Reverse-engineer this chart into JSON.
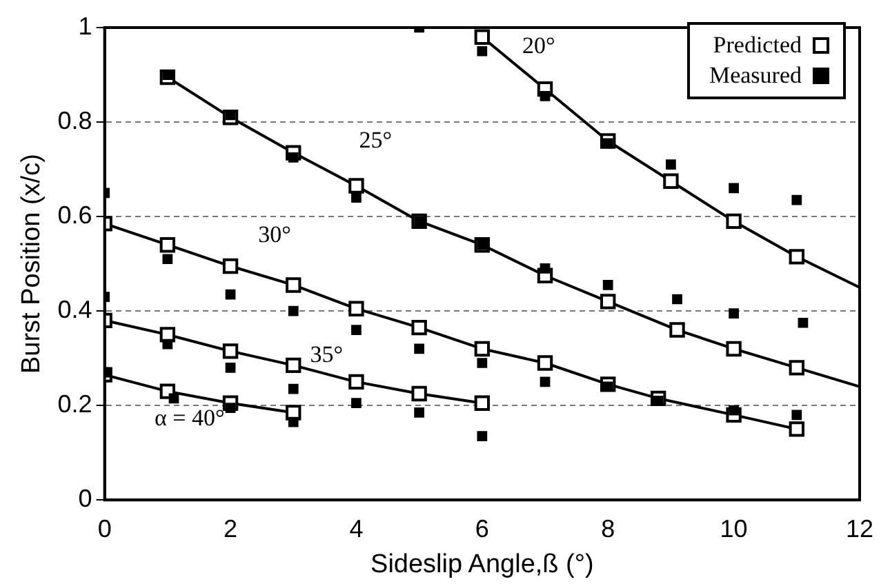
{
  "chart_data": {
    "type": "scatter",
    "xlabel": "Sideslip Angle,ß (°)",
    "ylabel": "Burst Position (x/c)",
    "xlim": [
      0,
      12
    ],
    "xticks": [
      0,
      2,
      4,
      6,
      8,
      10,
      12
    ],
    "ylim": [
      0,
      1
    ],
    "yticks": [
      0,
      0.2,
      0.4,
      0.6,
      0.8,
      1
    ],
    "grid": "y",
    "legend": "top right",
    "series": [
      {
        "type": "line",
        "name": "20°",
        "marker": "none",
        "color": "#000000",
        "x": [
          6,
          7,
          8,
          9,
          10,
          11,
          12
        ],
        "values": [
          0.98,
          0.87,
          0.76,
          0.675,
          0.59,
          0.515,
          0.45
        ]
      },
      {
        "type": "line",
        "name": "25°",
        "marker": "none",
        "color": "#000000",
        "x": [
          1,
          2,
          3,
          4,
          5,
          6,
          7,
          8,
          9.1,
          10,
          11,
          12
        ],
        "values": [
          0.895,
          0.81,
          0.735,
          0.665,
          0.59,
          0.54,
          0.475,
          0.42,
          0.36,
          0.32,
          0.28,
          0.24
        ]
      },
      {
        "type": "line",
        "name": "30°",
        "marker": "none",
        "color": "#000000",
        "x": [
          0,
          1,
          2,
          3,
          4,
          5,
          6,
          7,
          8,
          8.8,
          10,
          11
        ],
        "values": [
          0.585,
          0.54,
          0.495,
          0.455,
          0.405,
          0.365,
          0.32,
          0.29,
          0.245,
          0.215,
          0.18,
          0.15
        ]
      },
      {
        "type": "line",
        "name": "35°",
        "marker": "none",
        "color": "#000000",
        "x": [
          0,
          1,
          2,
          3,
          4,
          5,
          6
        ],
        "values": [
          0.38,
          0.35,
          0.315,
          0.285,
          0.25,
          0.225,
          0.205
        ]
      },
      {
        "type": "line",
        "name": "α = 40°",
        "marker": "none",
        "color": "#000000",
        "x": [
          0,
          1,
          2,
          3
        ],
        "values": [
          0.265,
          0.23,
          0.205,
          0.185
        ]
      },
      {
        "name": "Predicted",
        "marker": "square",
        "color": "#000000",
        "x": [
          6,
          7,
          8,
          9,
          10,
          11,
          1,
          2,
          3,
          4,
          5,
          6,
          7,
          8,
          9.1,
          10,
          11,
          0,
          1,
          2,
          3,
          4,
          5,
          6,
          7,
          8,
          8.8,
          10,
          11,
          0,
          1,
          2,
          3,
          4,
          5,
          6,
          0,
          1,
          2,
          3
        ],
        "values": [
          0.98,
          0.87,
          0.76,
          0.675,
          0.59,
          0.515,
          0.895,
          0.81,
          0.735,
          0.665,
          0.59,
          0.54,
          0.475,
          0.42,
          0.36,
          0.32,
          0.28,
          0.585,
          0.54,
          0.495,
          0.455,
          0.405,
          0.365,
          0.32,
          0.29,
          0.245,
          0.215,
          0.18,
          0.15,
          0.38,
          0.35,
          0.315,
          0.285,
          0.25,
          0.225,
          0.205,
          0.265,
          0.23,
          0.205,
          0.185
        ]
      },
      {
        "name": "Measured",
        "marker": "square",
        "color": "#000000",
        "x": [
          5,
          6,
          7,
          8,
          9,
          10,
          11,
          1,
          2,
          3,
          4,
          5,
          6,
          7,
          8,
          9.1,
          10,
          11.1,
          0,
          1,
          2,
          3,
          4,
          5,
          6,
          7,
          8,
          8.8,
          10,
          11,
          0,
          1,
          2,
          3,
          4,
          5,
          6,
          0,
          1.1,
          2,
          3
        ],
        "values": [
          1,
          0.95,
          0.855,
          0.755,
          0.71,
          0.66,
          0.635,
          0.9,
          0.815,
          0.725,
          0.64,
          0.59,
          0.54,
          0.49,
          0.455,
          0.425,
          0.395,
          0.375,
          0.65,
          0.51,
          0.435,
          0.4,
          0.36,
          0.32,
          0.29,
          0.25,
          0.24,
          0.21,
          0.19,
          0.18,
          0.43,
          0.33,
          0.28,
          0.235,
          0.205,
          0.185,
          0.135,
          0.27,
          0.215,
          0.195,
          0.165
        ]
      }
    ]
  }
}
